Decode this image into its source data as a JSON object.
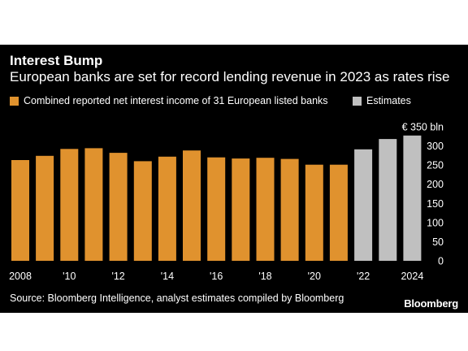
{
  "header": {
    "title": "Interest Bump",
    "subtitle": "European banks are set for record lending revenue in 2023 as rates rise"
  },
  "legend": [
    {
      "label": "Combined reported net interest income of 31 European listed banks",
      "color": "#e0922e"
    },
    {
      "label": "Estimates",
      "color": "#c0c0c0"
    }
  ],
  "footer": {
    "source": "Source: Bloomberg Intelligence, analyst estimates compiled by Bloomberg",
    "brand": "Bloomberg"
  },
  "chart_data": {
    "type": "bar",
    "title": "Interest Bump",
    "subtitle": "European banks are set for record lending revenue in 2023 as rates rise",
    "categories": [
      2008,
      2009,
      2010,
      2011,
      2012,
      2013,
      2014,
      2015,
      2016,
      2017,
      2018,
      2019,
      2020,
      2021,
      2022,
      2023,
      2024
    ],
    "series": [
      {
        "name": "Combined reported net interest income of 31 European listed banks",
        "color": "#e0922e",
        "values": [
          263,
          274,
          292,
          294,
          282,
          260,
          272,
          288,
          270,
          267,
          269,
          266,
          251,
          251,
          null,
          null,
          null
        ]
      },
      {
        "name": "Estimates",
        "color": "#c0c0c0",
        "values": [
          null,
          null,
          null,
          null,
          null,
          null,
          null,
          null,
          null,
          null,
          null,
          null,
          null,
          null,
          291,
          318,
          327
        ]
      }
    ],
    "x_tick_labels": [
      {
        "category": 2008,
        "label": "2008"
      },
      {
        "category": 2010,
        "label": "'10"
      },
      {
        "category": 2012,
        "label": "'12"
      },
      {
        "category": 2014,
        "label": "'14"
      },
      {
        "category": 2016,
        "label": "'16"
      },
      {
        "category": 2018,
        "label": "'18"
      },
      {
        "category": 2020,
        "label": "'20"
      },
      {
        "category": 2022,
        "label": "'22"
      },
      {
        "category": 2024,
        "label": "2024"
      }
    ],
    "y_ticks": [
      {
        "value": 0,
        "label": "0"
      },
      {
        "value": 50,
        "label": "50"
      },
      {
        "value": 100,
        "label": "100"
      },
      {
        "value": 150,
        "label": "150"
      },
      {
        "value": 200,
        "label": "200"
      },
      {
        "value": 250,
        "label": "250"
      },
      {
        "value": 300,
        "label": "300"
      },
      {
        "value": 350,
        "label": "€ 350 bln"
      }
    ],
    "ylim": [
      0,
      350
    ],
    "y_axis_side": "right",
    "grid": false,
    "legend_position": "top-left"
  }
}
